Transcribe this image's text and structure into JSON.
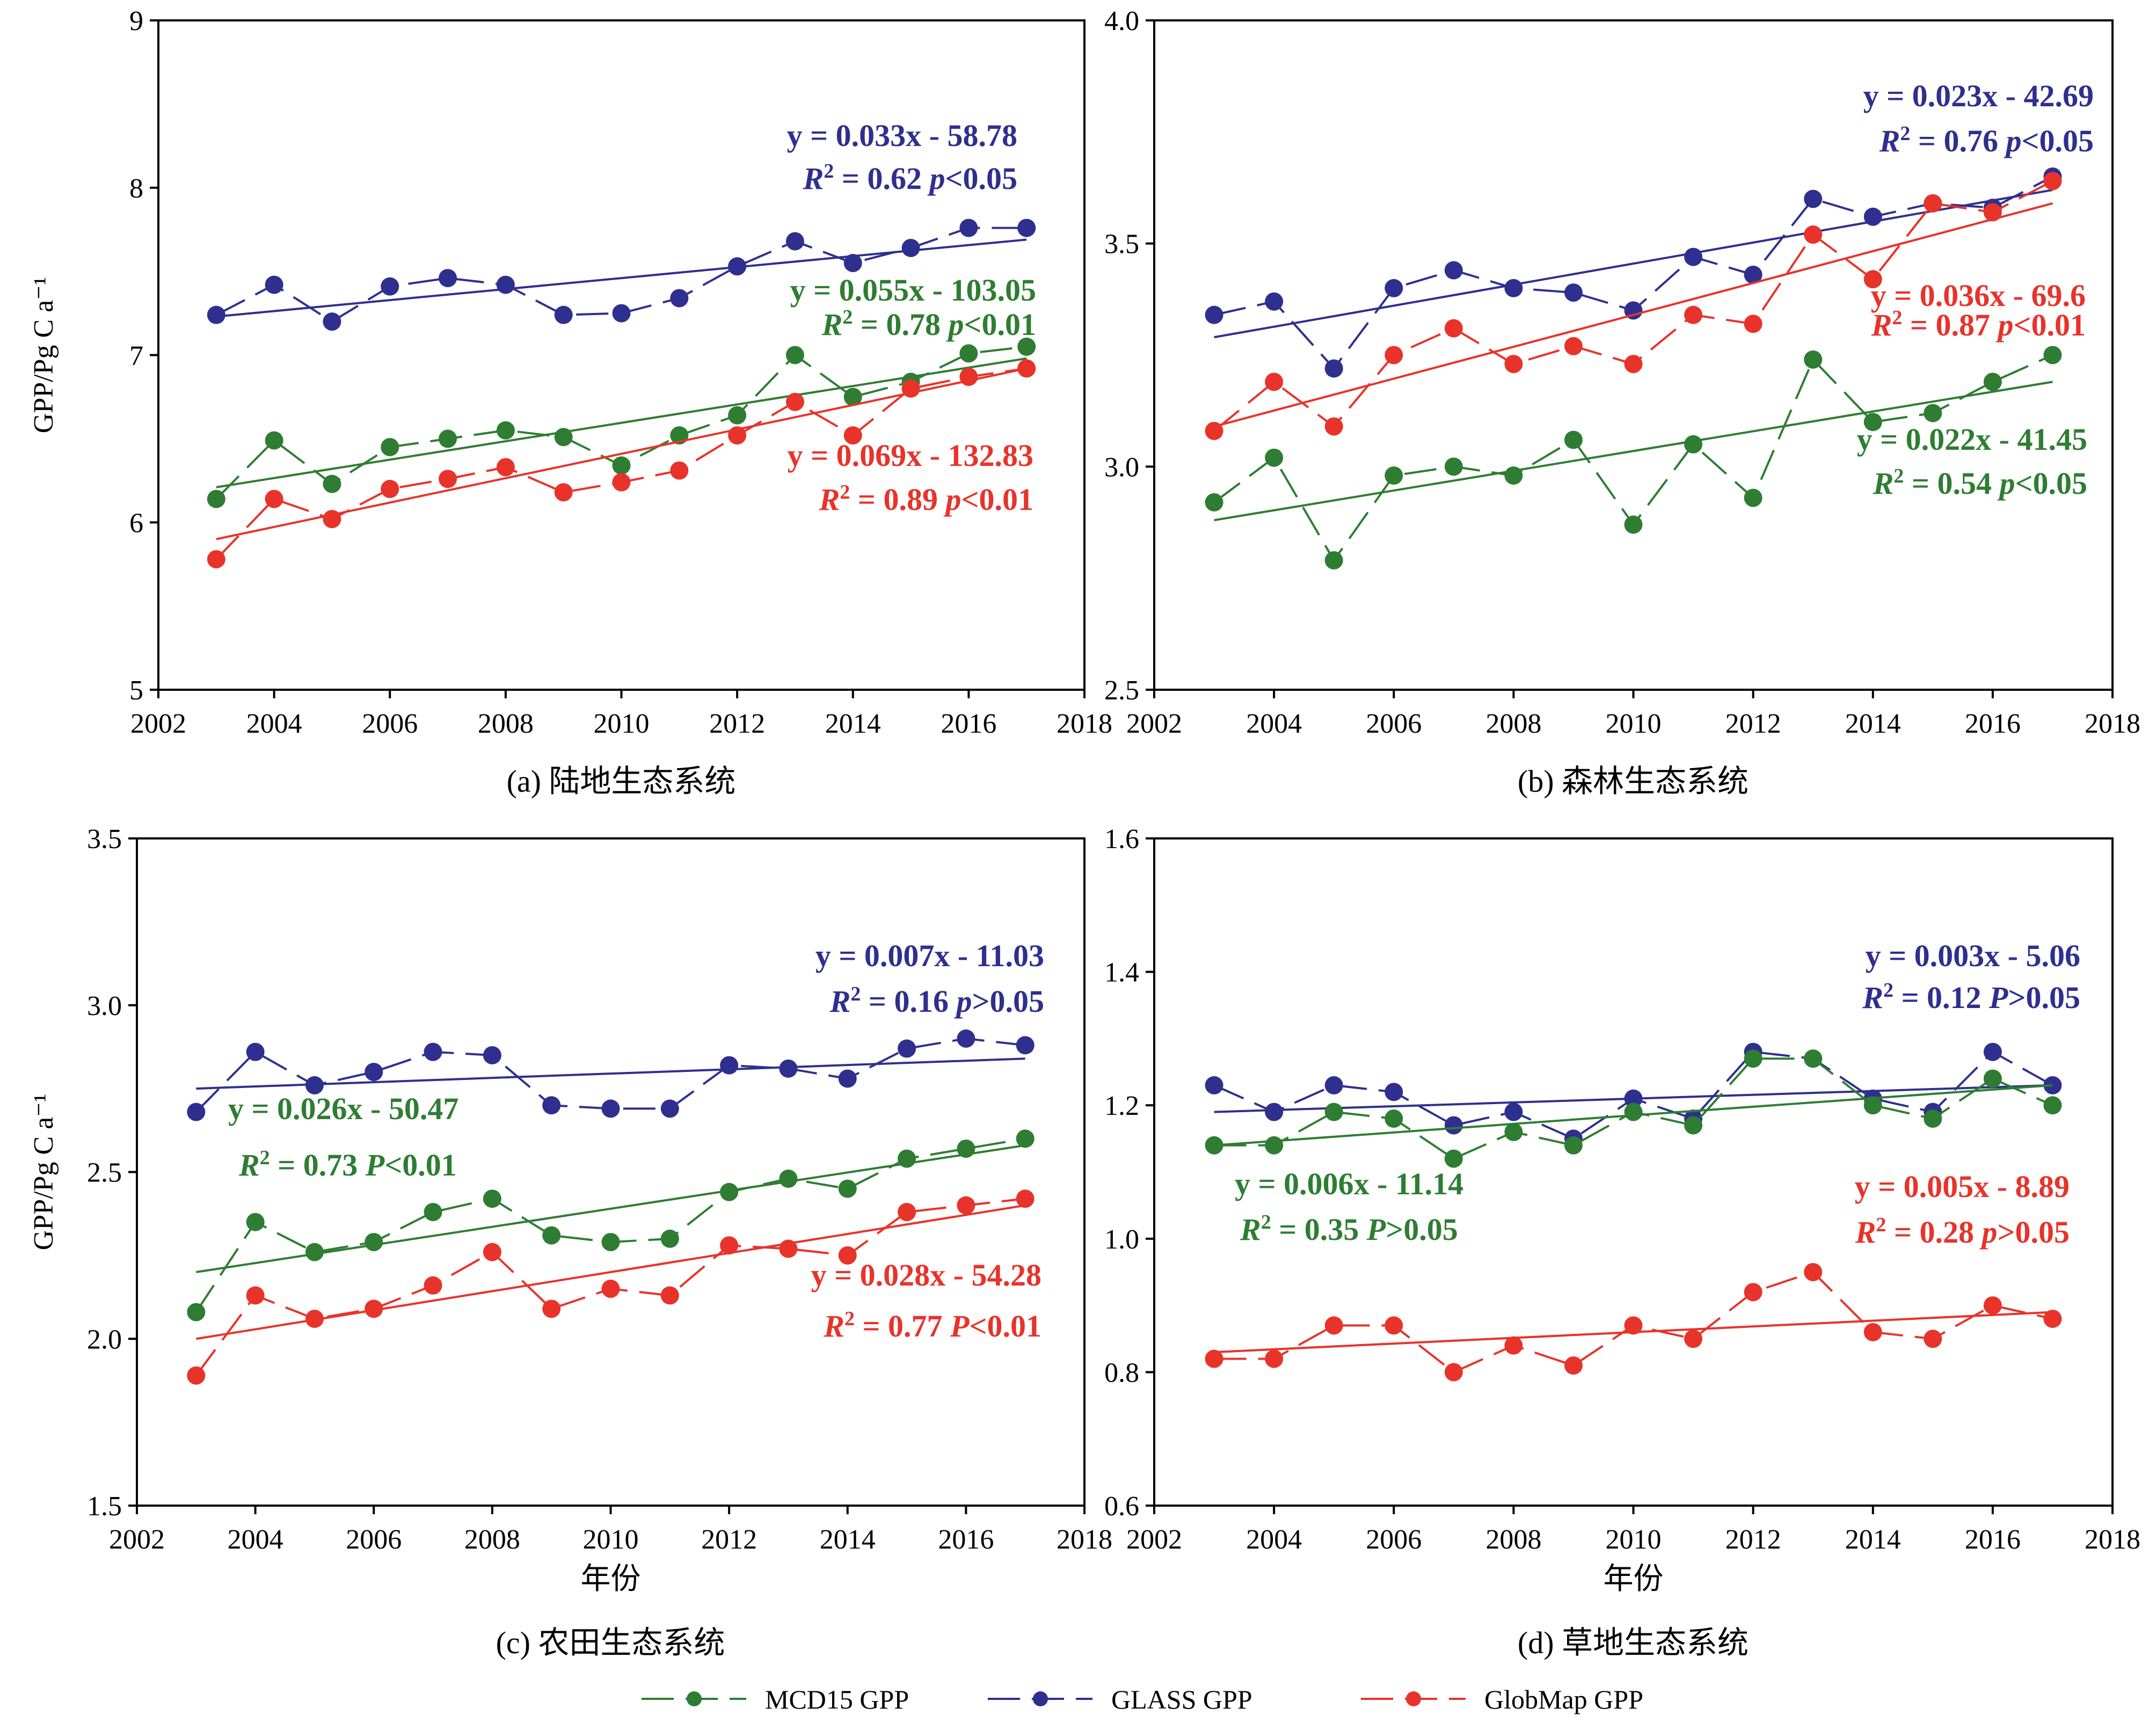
{
  "colors": {
    "mcd15": "#2e7d32",
    "glass": "#2f2f8f",
    "globmap": "#e8332a",
    "axis": "#000000"
  },
  "legend": {
    "items": [
      "MCD15 GPP",
      "GLASS GPP",
      "GlobMap GPP"
    ]
  },
  "chart_data": [
    {
      "type": "line",
      "caption": "(a) 陆地生态系统",
      "ylabel": "GPP/Pg C a⁻¹",
      "xlabel": "",
      "xlim": [
        2002,
        2018
      ],
      "ylim": [
        5,
        9
      ],
      "xticks": [
        2002,
        2004,
        2006,
        2008,
        2010,
        2012,
        2014,
        2016,
        2018
      ],
      "yticks": [
        5,
        6,
        7,
        8,
        9
      ],
      "ytick_labels": [
        "5",
        "6",
        "7",
        "8",
        "9"
      ],
      "x": [
        2003,
        2004,
        2005,
        2006,
        2007,
        2008,
        2009,
        2010,
        2011,
        2012,
        2013,
        2014,
        2015,
        2016,
        2017
      ],
      "series": [
        {
          "name": "GLASS GPP",
          "values": [
            7.24,
            7.42,
            7.2,
            7.41,
            7.46,
            7.42,
            7.24,
            7.25,
            7.34,
            7.53,
            7.68,
            7.55,
            7.64,
            7.76,
            7.76
          ],
          "fit": [
            7.23,
            7.69
          ],
          "eq": "y = 0.033x - 58.78",
          "r2": "0.62",
          "p_letter": "p",
          "p_rel": "<0.05"
        },
        {
          "name": "MCD15 GPP",
          "values": [
            6.14,
            6.49,
            6.23,
            6.45,
            6.5,
            6.55,
            6.51,
            6.34,
            6.52,
            6.64,
            7.0,
            6.75,
            6.84,
            7.01,
            7.05
          ],
          "fit": [
            6.21,
            6.98
          ],
          "eq": "y = 0.055x - 103.05",
          "r2": "0.78",
          "p_letter": "p",
          "p_rel": "<0.01"
        },
        {
          "name": "GlobMap GPP",
          "values": [
            5.78,
            6.14,
            6.02,
            6.2,
            6.26,
            6.33,
            6.18,
            6.24,
            6.31,
            6.52,
            6.72,
            6.52,
            6.8,
            6.87,
            6.92
          ],
          "fit": [
            5.9,
            6.92
          ],
          "eq": "y = 0.069x - 132.83",
          "r2": "0.89",
          "p_letter": "p",
          "p_rel": "<0.01"
        }
      ]
    },
    {
      "type": "line",
      "caption": "(b) 森林生态系统",
      "ylabel": "",
      "xlabel": "",
      "xlim": [
        2002,
        2018
      ],
      "ylim": [
        2.5,
        4.0
      ],
      "xticks": [
        2002,
        2004,
        2006,
        2008,
        2010,
        2012,
        2014,
        2016,
        2018
      ],
      "yticks": [
        2.5,
        3.0,
        3.5,
        4.0
      ],
      "ytick_labels": [
        "2.5",
        "3.0",
        "3.5",
        "4.0"
      ],
      "x": [
        2003,
        2004,
        2005,
        2006,
        2007,
        2008,
        2009,
        2010,
        2011,
        2012,
        2013,
        2014,
        2015,
        2016,
        2017
      ],
      "series": [
        {
          "name": "GLASS GPP",
          "values": [
            3.34,
            3.37,
            3.22,
            3.4,
            3.44,
            3.4,
            3.39,
            3.35,
            3.47,
            3.43,
            3.6,
            3.56,
            3.59,
            3.58,
            3.65
          ],
          "fit": [
            3.29,
            3.62
          ],
          "eq": "y = 0.023x - 42.69",
          "r2": "0.76",
          "p_letter": "p",
          "p_rel": "<0.05"
        },
        {
          "name": "GlobMap GPP",
          "values": [
            3.08,
            3.19,
            3.09,
            3.25,
            3.31,
            3.23,
            3.27,
            3.23,
            3.34,
            3.32,
            3.52,
            3.42,
            3.59,
            3.57,
            3.64
          ],
          "fit": [
            3.09,
            3.59
          ],
          "eq": "y = 0.036x - 69.6",
          "r2": "0.87",
          "p_letter": "p",
          "p_rel": "<0.01"
        },
        {
          "name": "MCD15 GPP",
          "values": [
            2.92,
            3.02,
            2.79,
            2.98,
            3.0,
            2.98,
            3.06,
            2.87,
            3.05,
            2.93,
            3.24,
            3.1,
            3.12,
            3.19,
            3.25
          ],
          "fit": [
            2.88,
            3.19
          ],
          "eq": "y = 0.022x - 41.45",
          "r2": "0.54",
          "p_letter": "p",
          "p_rel": "<0.05"
        }
      ]
    },
    {
      "type": "line",
      "caption": "(c) 农田生态系统",
      "ylabel": "GPP/Pg C a⁻¹",
      "xlabel": "年份",
      "xlim": [
        2002,
        2018
      ],
      "ylim": [
        1.5,
        3.5
      ],
      "xticks": [
        2002,
        2004,
        2006,
        2008,
        2010,
        2012,
        2014,
        2016,
        2018
      ],
      "yticks": [
        1.5,
        2.0,
        2.5,
        3.0,
        3.5
      ],
      "ytick_labels": [
        "1.5",
        "2.0",
        "2.5",
        "3.0",
        "3.5"
      ],
      "x": [
        2003,
        2004,
        2005,
        2006,
        2007,
        2008,
        2009,
        2010,
        2011,
        2012,
        2013,
        2014,
        2015,
        2016,
        2017
      ],
      "series": [
        {
          "name": "GLASS GPP",
          "values": [
            2.68,
            2.86,
            2.76,
            2.8,
            2.86,
            2.85,
            2.7,
            2.69,
            2.69,
            2.82,
            2.81,
            2.78,
            2.87,
            2.9,
            2.88
          ],
          "fit": [
            2.75,
            2.84
          ],
          "eq": "y = 0.007x - 11.03",
          "r2": "0.16",
          "p_letter": "p",
          "p_rel": ">0.05"
        },
        {
          "name": "MCD15 GPP",
          "values": [
            2.08,
            2.35,
            2.26,
            2.29,
            2.38,
            2.42,
            2.31,
            2.29,
            2.3,
            2.44,
            2.48,
            2.45,
            2.54,
            2.57,
            2.6
          ],
          "fit": [
            2.2,
            2.58
          ],
          "eq": "y = 0.026x - 50.47",
          "r2": "0.73",
          "p_letter": "P",
          "p_rel": "<0.01"
        },
        {
          "name": "GlobMap GPP",
          "values": [
            1.89,
            2.13,
            2.06,
            2.09,
            2.16,
            2.26,
            2.09,
            2.15,
            2.13,
            2.28,
            2.27,
            2.25,
            2.38,
            2.4,
            2.42
          ],
          "fit": [
            2.0,
            2.4
          ],
          "eq": "y = 0.028x - 54.28",
          "r2": "0.77",
          "p_letter": "P",
          "p_rel": "<0.01"
        }
      ]
    },
    {
      "type": "line",
      "caption": "(d) 草地生态系统",
      "ylabel": "",
      "xlabel": "年份",
      "xlim": [
        2002,
        2018
      ],
      "ylim": [
        0.6,
        1.6
      ],
      "xticks": [
        2002,
        2004,
        2006,
        2008,
        2010,
        2012,
        2014,
        2016,
        2018
      ],
      "yticks": [
        0.6,
        0.8,
        1.0,
        1.2,
        1.4,
        1.6
      ],
      "ytick_labels": [
        "0.6",
        "0.8",
        "1.0",
        "1.2",
        "1.4",
        "1.6"
      ],
      "x": [
        2003,
        2004,
        2005,
        2006,
        2007,
        2008,
        2009,
        2010,
        2011,
        2012,
        2013,
        2014,
        2015,
        2016,
        2017
      ],
      "series": [
        {
          "name": "GLASS GPP",
          "values": [
            1.23,
            1.19,
            1.23,
            1.22,
            1.17,
            1.19,
            1.15,
            1.21,
            1.18,
            1.28,
            1.27,
            1.21,
            1.19,
            1.28,
            1.23
          ],
          "fit": [
            1.19,
            1.23
          ],
          "eq": "y  =  0.003x - 5.06",
          "r2": "0.12",
          "p_letter": "P",
          "p_rel": ">0.05"
        },
        {
          "name": "MCD15 GPP",
          "values": [
            1.14,
            1.14,
            1.19,
            1.18,
            1.12,
            1.16,
            1.14,
            1.19,
            1.17,
            1.27,
            1.27,
            1.2,
            1.18,
            1.24,
            1.2
          ],
          "fit": [
            1.14,
            1.23
          ],
          "eq": "y = 0.006x - 11.14",
          "r2": "0.35",
          "p_letter": "P",
          "p_rel": ">0.05"
        },
        {
          "name": "GlobMap GPP",
          "values": [
            0.82,
            0.82,
            0.87,
            0.87,
            0.8,
            0.84,
            0.81,
            0.87,
            0.85,
            0.92,
            0.95,
            0.86,
            0.85,
            0.9,
            0.88
          ],
          "fit": [
            0.83,
            0.89
          ],
          "eq": "y  = 0.005x - 8.89",
          "r2": "0.28",
          "p_letter": "p",
          "p_rel": ">0.05"
        }
      ]
    }
  ]
}
